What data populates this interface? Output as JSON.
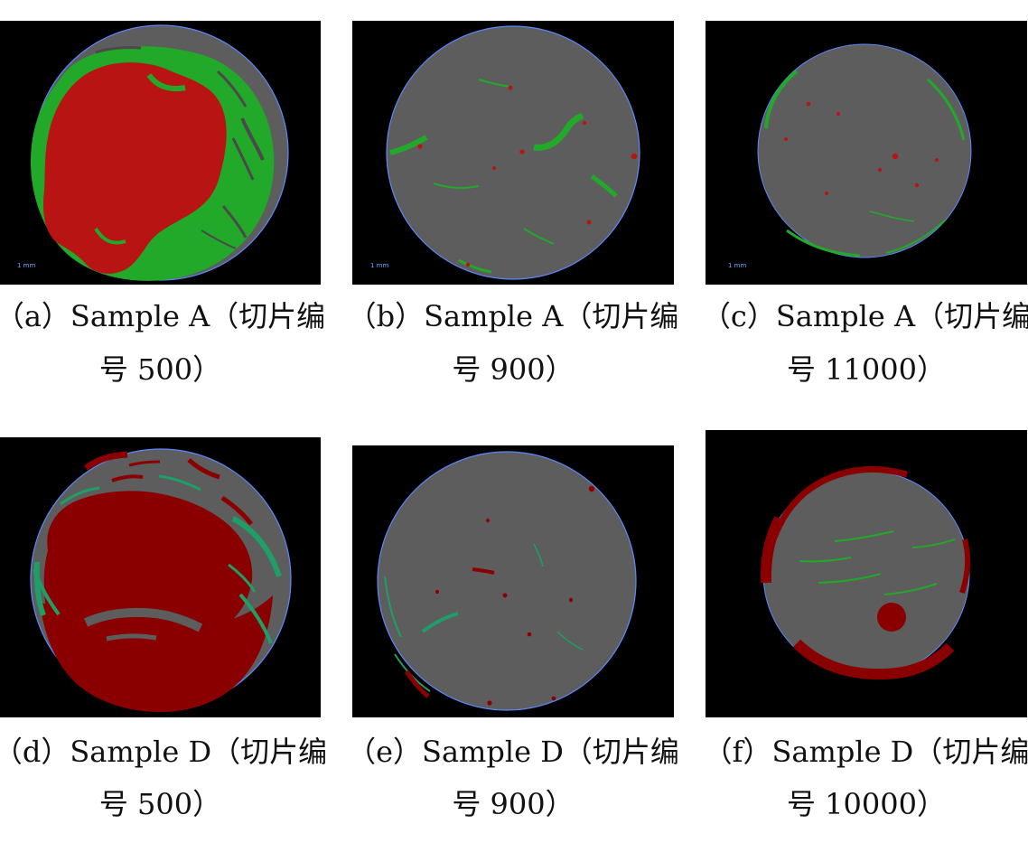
{
  "figure": {
    "panels": [
      {
        "id": "a",
        "caption_line1": "（a）Sample A（切片编",
        "caption_line2": "号 500）",
        "scale_label": "1 mm"
      },
      {
        "id": "b",
        "caption_line1": "（b）Sample A（切片编",
        "caption_line2": "号 900）",
        "scale_label": "1 mm"
      },
      {
        "id": "c",
        "caption_line1": "（c）Sample A（切片编",
        "caption_line2": "号 11000）",
        "scale_label": "1 mm"
      },
      {
        "id": "d",
        "caption_line1": "（d）Sample D（切片编",
        "caption_line2": "号 500）",
        "scale_label": ""
      },
      {
        "id": "e",
        "caption_line1": "（e）Sample D（切片编",
        "caption_line2": "号 900）",
        "scale_label": ""
      },
      {
        "id": "f",
        "caption_line1": "（f）Sample D（切片编",
        "caption_line2": "号 10000）",
        "scale_label": ""
      }
    ],
    "colors": {
      "background": "#000000",
      "matrix_gray": "#5d5d5d",
      "matrix_gray_dark": "#4a4a4a",
      "phase_red": "#b81414",
      "phase_dark_red": "#8a0000",
      "phase_green": "#22a92a",
      "phase_teal_green": "#1e9f67",
      "outline_blue": "#5a88ff"
    }
  }
}
